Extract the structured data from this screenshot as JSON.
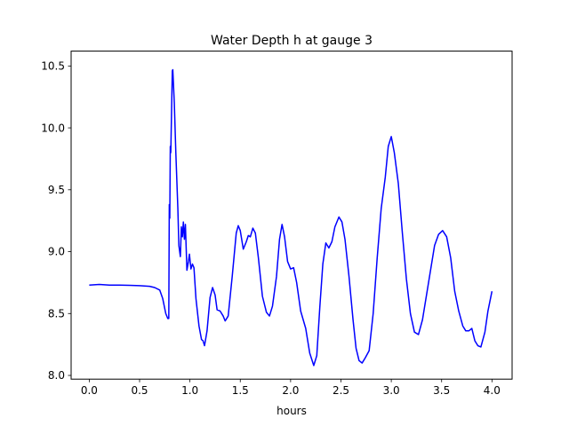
{
  "chart_data": {
    "type": "line",
    "title": "Water Depth h at gauge 3",
    "xlabel": "hours",
    "ylabel": "",
    "xlim": [
      -0.18,
      4.2
    ],
    "ylim": [
      7.97,
      10.62
    ],
    "x_ticks": [
      0.0,
      0.5,
      1.0,
      1.5,
      2.0,
      2.5,
      3.0,
      3.5,
      4.0
    ],
    "x_tick_labels": [
      "0.0",
      "0.5",
      "1.0",
      "1.5",
      "2.0",
      "2.5",
      "3.0",
      "3.5",
      "4.0"
    ],
    "y_ticks": [
      8.0,
      8.5,
      9.0,
      9.5,
      10.0,
      10.5
    ],
    "y_tick_labels": [
      "8.0",
      "8.5",
      "9.0",
      "9.5",
      "10.0",
      "10.5"
    ],
    "grid": false,
    "series": [
      {
        "color": "#0000ff",
        "points": [
          [
            0.0,
            8.73
          ],
          [
            0.1,
            8.735
          ],
          [
            0.2,
            8.73
          ],
          [
            0.3,
            8.73
          ],
          [
            0.4,
            8.728
          ],
          [
            0.5,
            8.725
          ],
          [
            0.6,
            8.72
          ],
          [
            0.65,
            8.71
          ],
          [
            0.7,
            8.69
          ],
          [
            0.73,
            8.62
          ],
          [
            0.76,
            8.5
          ],
          [
            0.78,
            8.46
          ],
          [
            0.79,
            8.46
          ],
          [
            0.795,
            9.38
          ],
          [
            0.8,
            9.27
          ],
          [
            0.805,
            9.85
          ],
          [
            0.81,
            9.8
          ],
          [
            0.825,
            10.46
          ],
          [
            0.83,
            10.47
          ],
          [
            0.845,
            10.2
          ],
          [
            0.86,
            9.8
          ],
          [
            0.88,
            9.35
          ],
          [
            0.89,
            9.05
          ],
          [
            0.905,
            8.96
          ],
          [
            0.915,
            9.2
          ],
          [
            0.925,
            9.12
          ],
          [
            0.935,
            9.24
          ],
          [
            0.945,
            9.1
          ],
          [
            0.955,
            9.22
          ],
          [
            0.97,
            8.85
          ],
          [
            0.985,
            8.92
          ],
          [
            0.995,
            8.98
          ],
          [
            1.01,
            8.86
          ],
          [
            1.025,
            8.9
          ],
          [
            1.04,
            8.87
          ],
          [
            1.06,
            8.62
          ],
          [
            1.09,
            8.4
          ],
          [
            1.115,
            8.29
          ],
          [
            1.13,
            8.28
          ],
          [
            1.145,
            8.24
          ],
          [
            1.17,
            8.36
          ],
          [
            1.2,
            8.63
          ],
          [
            1.225,
            8.71
          ],
          [
            1.25,
            8.65
          ],
          [
            1.27,
            8.53
          ],
          [
            1.3,
            8.52
          ],
          [
            1.33,
            8.48
          ],
          [
            1.35,
            8.44
          ],
          [
            1.38,
            8.48
          ],
          [
            1.42,
            8.8
          ],
          [
            1.46,
            9.15
          ],
          [
            1.48,
            9.21
          ],
          [
            1.5,
            9.17
          ],
          [
            1.53,
            9.02
          ],
          [
            1.56,
            9.08
          ],
          [
            1.58,
            9.13
          ],
          [
            1.6,
            9.12
          ],
          [
            1.625,
            9.19
          ],
          [
            1.65,
            9.15
          ],
          [
            1.68,
            8.95
          ],
          [
            1.72,
            8.64
          ],
          [
            1.76,
            8.51
          ],
          [
            1.79,
            8.48
          ],
          [
            1.82,
            8.56
          ],
          [
            1.86,
            8.8
          ],
          [
            1.89,
            9.1
          ],
          [
            1.915,
            9.22
          ],
          [
            1.94,
            9.12
          ],
          [
            1.97,
            8.92
          ],
          [
            2.0,
            8.86
          ],
          [
            2.03,
            8.87
          ],
          [
            2.06,
            8.75
          ],
          [
            2.1,
            8.52
          ],
          [
            2.15,
            8.38
          ],
          [
            2.19,
            8.18
          ],
          [
            2.23,
            8.08
          ],
          [
            2.26,
            8.16
          ],
          [
            2.29,
            8.55
          ],
          [
            2.32,
            8.9
          ],
          [
            2.35,
            9.07
          ],
          [
            2.38,
            9.03
          ],
          [
            2.41,
            9.08
          ],
          [
            2.44,
            9.2
          ],
          [
            2.48,
            9.28
          ],
          [
            2.51,
            9.24
          ],
          [
            2.54,
            9.1
          ],
          [
            2.58,
            8.8
          ],
          [
            2.62,
            8.45
          ],
          [
            2.65,
            8.22
          ],
          [
            2.68,
            8.12
          ],
          [
            2.71,
            8.1
          ],
          [
            2.74,
            8.14
          ],
          [
            2.78,
            8.2
          ],
          [
            2.82,
            8.5
          ],
          [
            2.86,
            8.95
          ],
          [
            2.9,
            9.35
          ],
          [
            2.94,
            9.6
          ],
          [
            2.97,
            9.85
          ],
          [
            3.0,
            9.93
          ],
          [
            3.03,
            9.8
          ],
          [
            3.07,
            9.55
          ],
          [
            3.11,
            9.15
          ],
          [
            3.15,
            8.78
          ],
          [
            3.19,
            8.5
          ],
          [
            3.23,
            8.35
          ],
          [
            3.27,
            8.33
          ],
          [
            3.31,
            8.45
          ],
          [
            3.35,
            8.65
          ],
          [
            3.39,
            8.85
          ],
          [
            3.43,
            9.05
          ],
          [
            3.47,
            9.14
          ],
          [
            3.51,
            9.17
          ],
          [
            3.55,
            9.12
          ],
          [
            3.59,
            8.95
          ],
          [
            3.63,
            8.68
          ],
          [
            3.67,
            8.52
          ],
          [
            3.71,
            8.4
          ],
          [
            3.74,
            8.36
          ],
          [
            3.77,
            8.36
          ],
          [
            3.8,
            8.38
          ],
          [
            3.83,
            8.28
          ],
          [
            3.86,
            8.24
          ],
          [
            3.89,
            8.23
          ],
          [
            3.93,
            8.35
          ],
          [
            3.96,
            8.52
          ],
          [
            4.0,
            8.68
          ]
        ]
      }
    ]
  }
}
